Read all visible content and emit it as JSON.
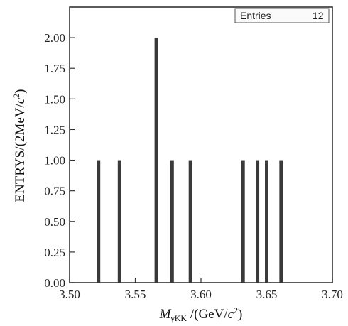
{
  "chart_data": {
    "type": "bar",
    "x": [
      3.522,
      3.538,
      3.566,
      3.578,
      3.592,
      3.632,
      3.643,
      3.65,
      3.661
    ],
    "values": [
      1,
      1,
      2,
      1,
      1,
      1,
      1,
      1,
      1
    ],
    "xlim": [
      3.5,
      3.7
    ],
    "ylim": [
      0.0,
      2.25
    ],
    "xticks": [
      "3.50",
      "3.55",
      "3.60",
      "3.65",
      "3.70"
    ],
    "yticks": [
      "0.00",
      "0.25",
      "0.50",
      "0.75",
      "1.00",
      "1.25",
      "1.50",
      "1.75",
      "2.00"
    ],
    "xlabel": "M_γKK /(GeV/c²)",
    "ylabel": "ENTRYS/(2MeV/c²)",
    "legend": {
      "label": "Entries",
      "value": "12",
      "position": "top-right"
    },
    "bar_color": "#3a3a3a",
    "grid": false
  }
}
